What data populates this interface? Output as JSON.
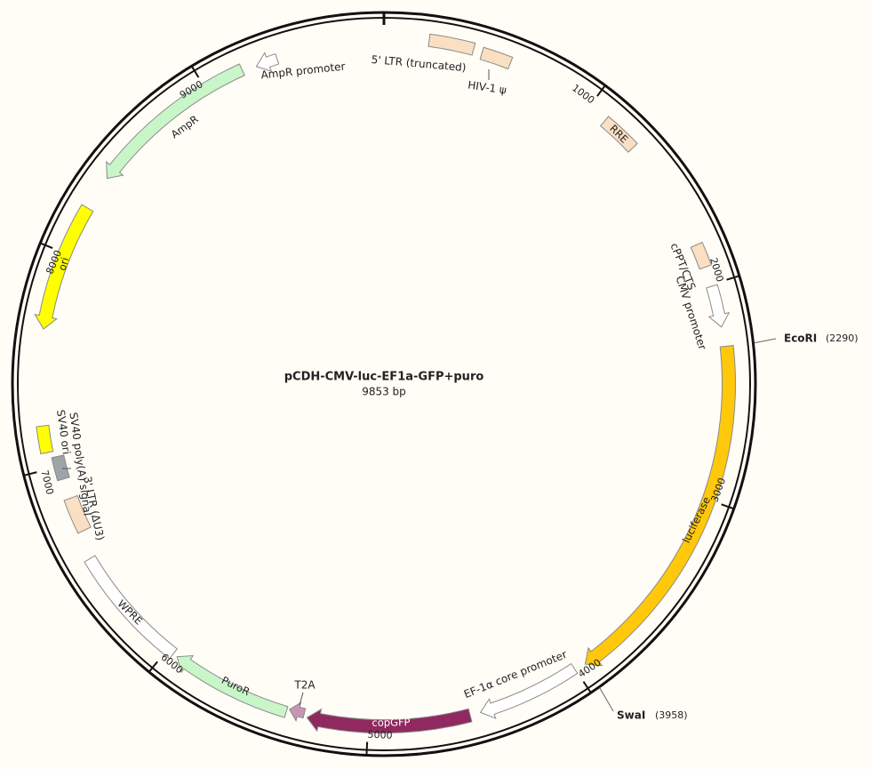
{
  "title": "pCDH-CMV-luc-EF1a-GFP+puro",
  "length": "9853 bp",
  "ticks": [
    1000,
    2000,
    3000,
    4000,
    5000,
    6000,
    7000,
    8000,
    9000
  ],
  "features": [
    "5' LTR (truncated)",
    "HIV-1 ψ",
    "RRE",
    "cPPT/CTS",
    "CMV promoter",
    "luciferase",
    "EF-1α core promoter",
    "copGFP",
    "T2A",
    "PuroR",
    "WPRE",
    "3' LTR (ΔU3)",
    "SV40 poly(A) signal",
    "SV40 ori",
    "ori",
    "AmpR",
    "AmpR promoter"
  ],
  "sites": [
    {
      "name": "EcoRI",
      "position": "(2290)"
    },
    {
      "name": "SwaI",
      "position": "(3958)"
    }
  ]
}
